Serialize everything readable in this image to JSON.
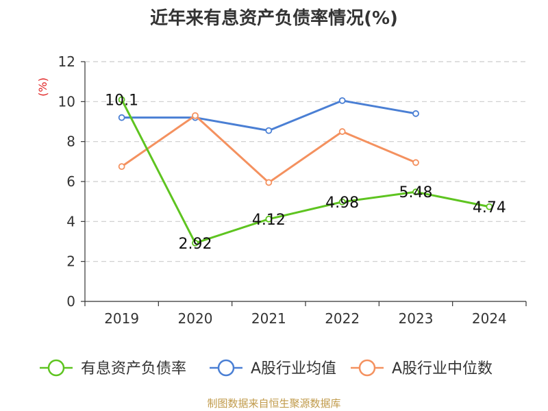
{
  "chart_data": {
    "type": "line",
    "title": "近年来有息资产负债率情况(%)",
    "ylabel": "(%)",
    "xlabel": "",
    "categories": [
      "2019",
      "2020",
      "2021",
      "2022",
      "2023",
      "2024"
    ],
    "ylim": [
      0,
      12
    ],
    "yticks": [
      0,
      2,
      4,
      6,
      8,
      10,
      12
    ],
    "grid": true,
    "legend": "bottom",
    "series": [
      {
        "name": "有息资产负债率",
        "color": "#5ec420",
        "values": [
          10.1,
          2.92,
          4.12,
          4.98,
          5.48,
          4.74
        ],
        "labels": [
          "10.1",
          "2.92",
          "4.12",
          "4.98",
          "5.48",
          "4.74"
        ]
      },
      {
        "name": "A股行业均值",
        "color": "#4a7fd4",
        "values": [
          9.2,
          9.2,
          8.55,
          10.05,
          9.4,
          null
        ]
      },
      {
        "name": "A股行业中位数",
        "color": "#f4915f",
        "values": [
          6.75,
          9.3,
          5.95,
          8.5,
          6.95,
          null
        ]
      }
    ]
  },
  "footer": "制图数据来自恒生聚源数据库"
}
